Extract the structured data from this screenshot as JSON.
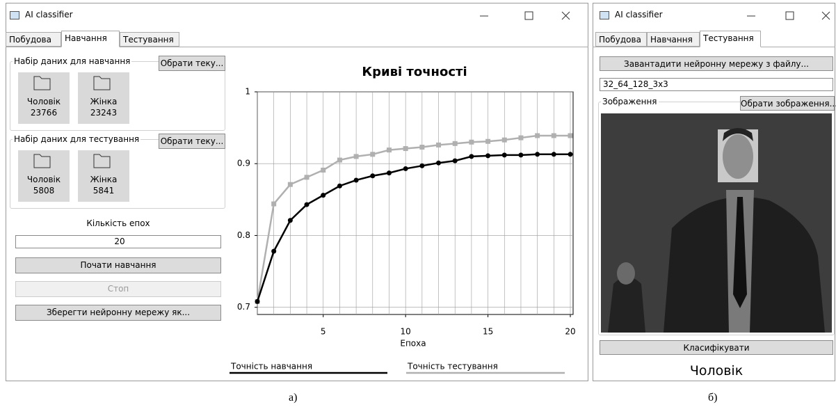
{
  "window_a": {
    "title": "AI classifier",
    "tabs": [
      "Побудова",
      "Навчання",
      "Тестування"
    ],
    "train_set": {
      "label": "Набір даних для навчання",
      "button": "Обрати теку...",
      "folders": [
        {
          "name": "Чоловік",
          "count": "23766"
        },
        {
          "name": "Жінка",
          "count": "23243"
        }
      ]
    },
    "test_set": {
      "label": "Набір даних для тестування",
      "button": "Обрати теку...",
      "folders": [
        {
          "name": "Чоловік",
          "count": "5808"
        },
        {
          "name": "Жінка",
          "count": "5841"
        }
      ]
    },
    "epochs_label": "Кількість епох",
    "epochs_value": "20",
    "buttons": [
      "Почати навчання",
      "Стоп",
      "Зберегти нейронну мережу як..."
    ]
  },
  "chart_data": {
    "type": "line",
    "title": "Криві точності",
    "x_label": "Епоха",
    "x": [
      1,
      2,
      3,
      4,
      5,
      6,
      7,
      8,
      9,
      10,
      11,
      12,
      13,
      14,
      15,
      16,
      17,
      18,
      19,
      20
    ],
    "series": [
      {
        "name": "Точність навчання",
        "color": "#000000",
        "values": [
          0.708,
          0.778,
          0.821,
          0.843,
          0.856,
          0.869,
          0.877,
          0.883,
          0.887,
          0.893,
          0.897,
          0.901,
          0.904,
          0.91,
          0.911,
          0.912,
          0.912,
          0.913,
          0.913,
          0.913
        ]
      },
      {
        "name": "Точність тестування",
        "color": "#b0b0b0",
        "values": [
          0.708,
          0.844,
          0.871,
          0.881,
          0.891,
          0.905,
          0.91,
          0.913,
          0.919,
          0.921,
          0.923,
          0.926,
          0.928,
          0.93,
          0.931,
          0.933,
          0.936,
          0.939,
          0.939,
          0.939
        ]
      }
    ],
    "xlim": [
      1,
      20
    ],
    "xticks": [
      5,
      10,
      15,
      20
    ],
    "ylim": [
      0.69,
      1.0
    ],
    "yticks": [
      0.7,
      0.8,
      0.9,
      1
    ],
    "grid": true
  },
  "window_b": {
    "title": "AI classifier",
    "tabs": [
      "Побудова",
      "Навчання",
      "Тестування"
    ],
    "load_button": "Завантадити нейронну мережу з файлу...",
    "model_name": "32_64_128_3x3",
    "image_group": "Зображення",
    "image_button": "Обрати зображення...",
    "classify_button": "Класифікувати",
    "result": "Чоловік"
  },
  "captions": [
    "а)",
    "б)"
  ]
}
